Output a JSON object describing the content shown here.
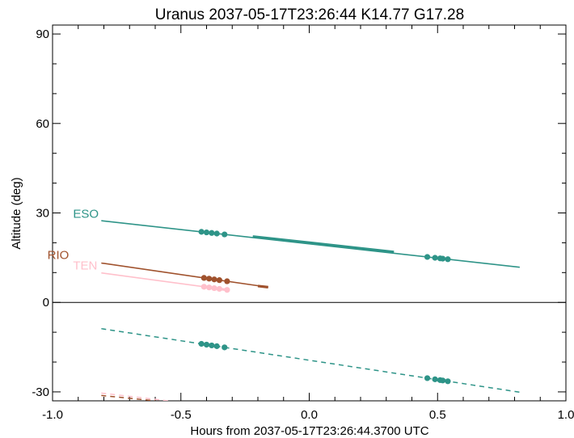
{
  "chart_data": {
    "type": "line",
    "title": "Uranus 2037-05-17T23:26:44  K14.77  G17.28",
    "xlabel": "Hours from 2037-05-17T23:26:44.3700 UTC",
    "ylabel": "Altitude (deg)",
    "xlim": [
      -1.0,
      1.0
    ],
    "ylim": [
      -33,
      93
    ],
    "xticks": [
      -1.0,
      -0.5,
      0.0,
      0.5,
      1.0
    ],
    "xtick_labels": [
      "-1.0",
      "-0.5",
      "0.0",
      "0.5",
      "1.0"
    ],
    "yticks": [
      -30,
      0,
      30,
      60,
      90
    ],
    "ytick_labels": [
      "-30",
      "0",
      "30",
      "60",
      "90"
    ],
    "reference_line_y": 0,
    "grid": false,
    "series": [
      {
        "name": "ESO",
        "color": "#2e9488",
        "label_pos": [
          -0.92,
          28.4
        ],
        "line": [
          [
            -0.81,
            27.4
          ],
          [
            0.82,
            11.8
          ]
        ],
        "thick": [
          [
            -0.22,
            22.1
          ],
          [
            0.33,
            16.9
          ]
        ],
        "dots": [
          -0.42,
          -0.4,
          -0.38,
          -0.36,
          -0.33,
          0.46,
          0.49,
          0.51,
          0.52,
          0.54
        ],
        "below": [
          [
            -0.81,
            -8.8
          ],
          [
            0.82,
            -30.1
          ]
        ],
        "below_dots": [
          -0.42,
          -0.4,
          -0.38,
          -0.36,
          -0.33,
          0.46,
          0.49,
          0.51,
          0.52,
          0.54
        ]
      },
      {
        "name": "RIO",
        "color": "#a0522d",
        "label_pos": [
          -1.02,
          14.5
        ],
        "line": [
          [
            -0.81,
            13.2
          ],
          [
            -0.16,
            5.1
          ]
        ],
        "thick": [
          [
            -0.2,
            5.5
          ],
          [
            -0.16,
            5.1
          ]
        ],
        "dots": [
          -0.41,
          -0.39,
          -0.37,
          -0.35,
          -0.32
        ],
        "below": [
          [
            -0.81,
            -31.2
          ],
          [
            -0.6,
            -33.0
          ]
        ],
        "below_dots": []
      },
      {
        "name": "TEN",
        "color": "#ffc0cb",
        "label_pos": [
          -0.92,
          11.0
        ],
        "line": [
          [
            -0.81,
            9.9
          ],
          [
            -0.32,
            4.2
          ]
        ],
        "thick": [
          [
            -0.4,
            5.0
          ],
          [
            -0.32,
            4.2
          ]
        ],
        "dots": [
          -0.41,
          -0.39,
          -0.37,
          -0.35,
          -0.32
        ],
        "below": [
          [
            -0.81,
            -30.4
          ],
          [
            -0.55,
            -33.0
          ]
        ],
        "below_dots": []
      }
    ]
  }
}
